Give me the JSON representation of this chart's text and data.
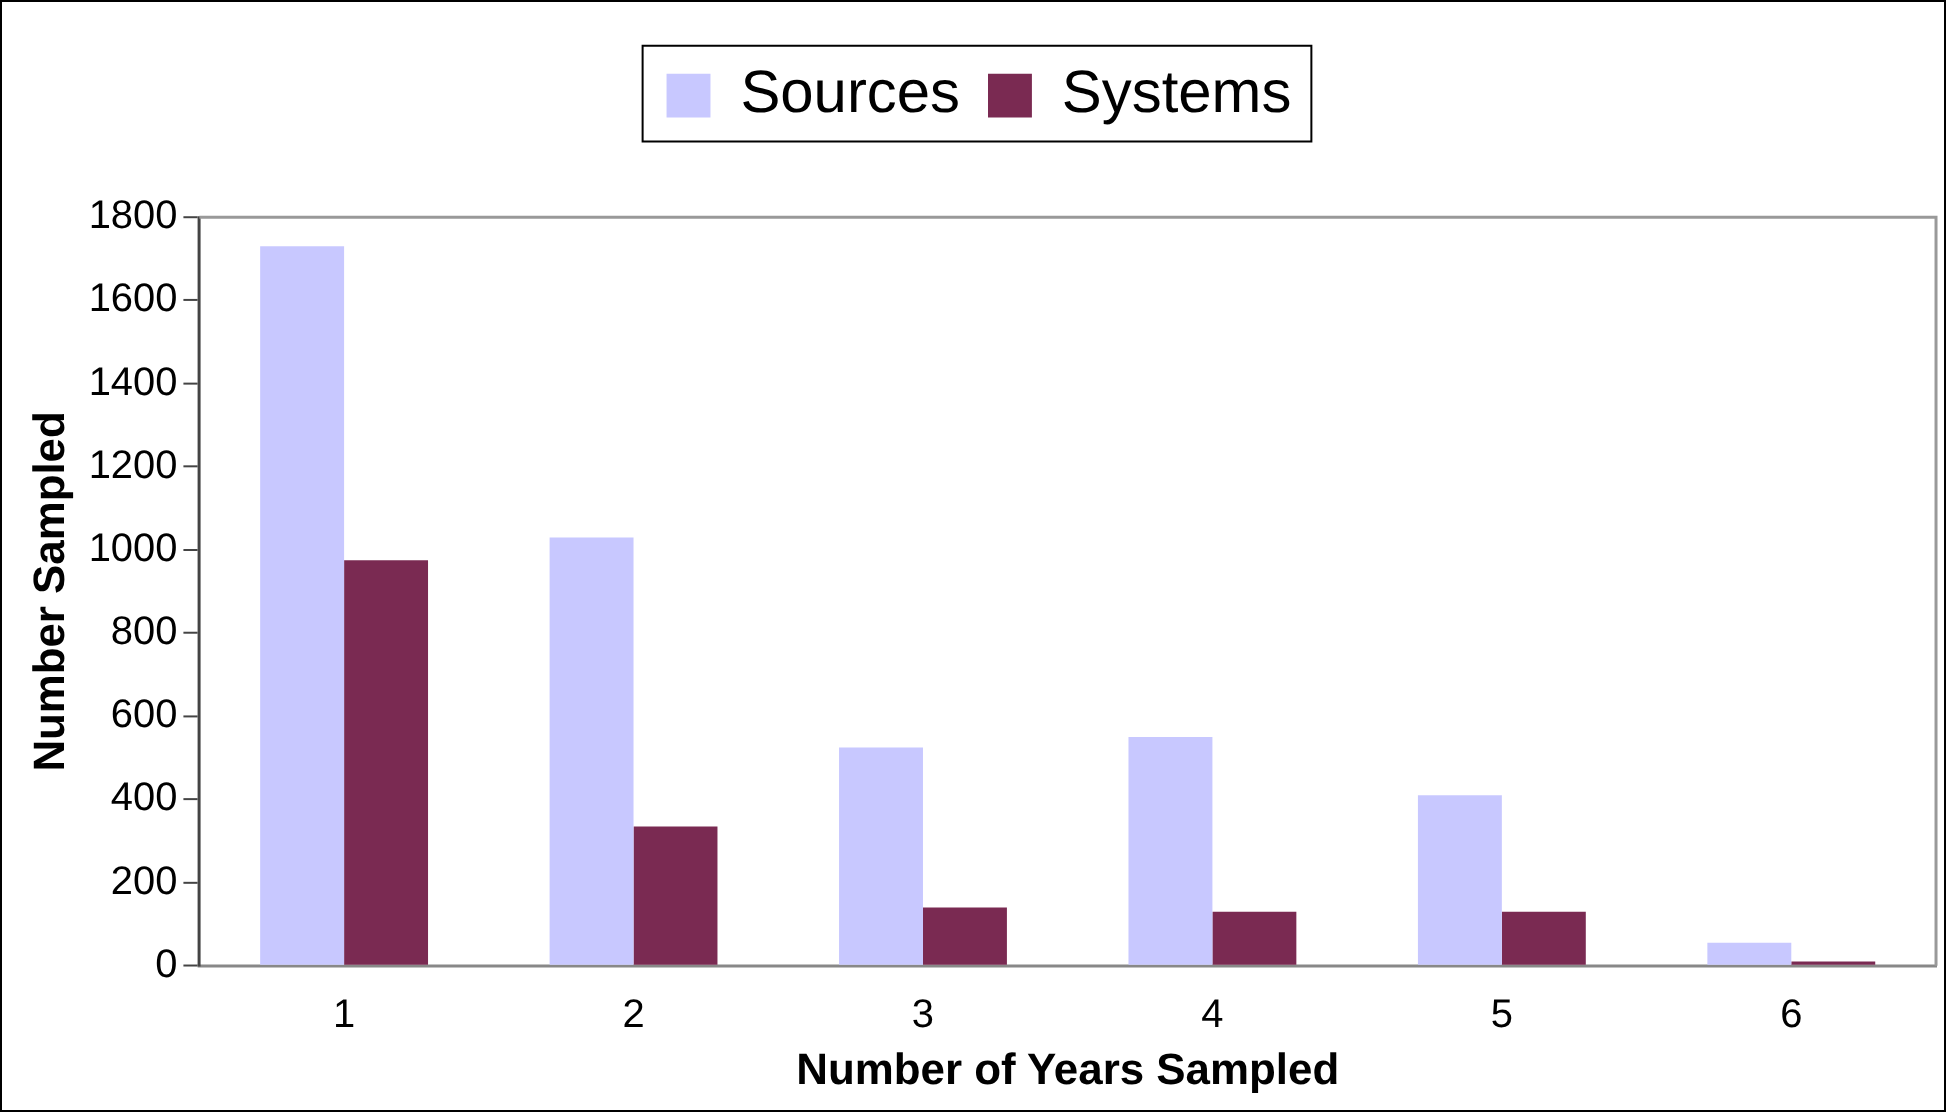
{
  "chart_data": {
    "type": "bar",
    "xlabel": "Number of Years Sampled",
    "ylabel": "Number Sampled",
    "categories": [
      "1",
      "2",
      "3",
      "4",
      "5",
      "6"
    ],
    "series": [
      {
        "name": "Sources",
        "color": "#c8c8ff",
        "values": [
          1730,
          1030,
          525,
          550,
          410,
          55
        ]
      },
      {
        "name": "Systems",
        "color": "#7a2a52",
        "values": [
          975,
          335,
          140,
          130,
          130,
          10
        ]
      }
    ],
    "ylim": [
      0,
      1800
    ],
    "yticks": [
      0,
      200,
      400,
      600,
      800,
      1000,
      1200,
      1400,
      1600,
      1800
    ],
    "grid": false,
    "legend": "top"
  }
}
